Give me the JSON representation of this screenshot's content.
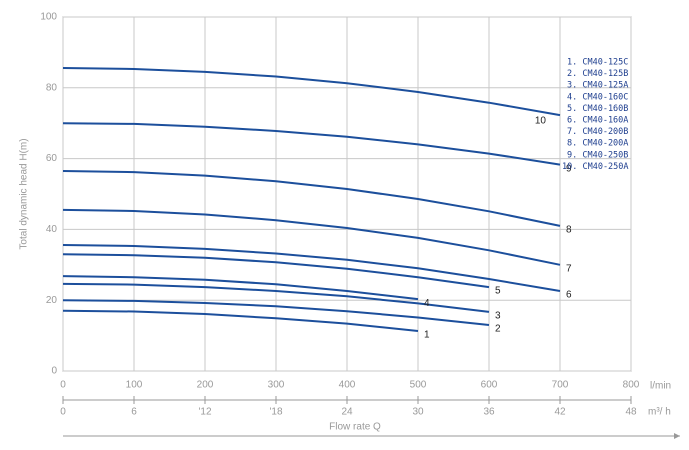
{
  "chart_data": {
    "type": "line",
    "ylabel": "Total dynamic head H(m)",
    "xlabel": "l/min",
    "x2label": "m³/ h",
    "caption": "Flow rate Q",
    "x": [
      0,
      100,
      200,
      300,
      400,
      500,
      600,
      700
    ],
    "xlim": [
      0,
      800
    ],
    "xticks": [
      0,
      100,
      200,
      300,
      400,
      500,
      600,
      700,
      800
    ],
    "ylim": [
      0,
      100
    ],
    "yticks": [
      0,
      20,
      40,
      60,
      80,
      100
    ],
    "x2lim": [
      0,
      48
    ],
    "x2ticks": [
      0,
      6,
      {
        "value": 12,
        "label": "'12"
      },
      {
        "value": 18,
        "label": "'18"
      },
      24,
      30,
      36,
      42,
      48
    ],
    "grid": true,
    "color": "#1c4f9c",
    "series": [
      {
        "name": "1. CM40-125C",
        "label": "1",
        "values": [
          17,
          16.8,
          16.1,
          14.9,
          13.4,
          11.3,
          null,
          null
        ]
      },
      {
        "name": "2. CM40-125B",
        "label": "2",
        "values": [
          20,
          19.8,
          19.2,
          18.3,
          16.9,
          15.1,
          13,
          null
        ]
      },
      {
        "name": "3. CM40-125A",
        "label": "3",
        "values": [
          24.6,
          24.4,
          23.7,
          22.6,
          21.1,
          19.1,
          16.7,
          null
        ]
      },
      {
        "name": "4. CM40-160C",
        "label": "4",
        "values": [
          26.8,
          26.5,
          25.8,
          24.5,
          22.6,
          20.3,
          null,
          null
        ]
      },
      {
        "name": "5. CM40-160B",
        "label": "5",
        "values": [
          33,
          32.7,
          32,
          30.7,
          28.9,
          26.5,
          23.7,
          null
        ]
      },
      {
        "name": "6. CM40-160A",
        "label": "6",
        "values": [
          35.6,
          35.3,
          34.5,
          33.2,
          31.4,
          29,
          26,
          22.6
        ]
      },
      {
        "name": "7. CM40-200B",
        "label": "7",
        "values": [
          45.5,
          45.2,
          44.2,
          42.6,
          40.4,
          37.6,
          34.1,
          30
        ]
      },
      {
        "name": "8. CM40-200A",
        "label": "8",
        "values": [
          56.5,
          56.2,
          55.2,
          53.6,
          51.4,
          48.6,
          45.1,
          41
        ]
      },
      {
        "name": "9. CM40-250B",
        "label": "9",
        "values": [
          70,
          69.8,
          69,
          67.8,
          66.2,
          64,
          61.4,
          58.3
        ]
      },
      {
        "name": "10. CM40-250A",
        "label": "10",
        "values": [
          85.6,
          85.3,
          84.5,
          83.2,
          81.3,
          78.8,
          75.8,
          72.3
        ]
      }
    ]
  }
}
